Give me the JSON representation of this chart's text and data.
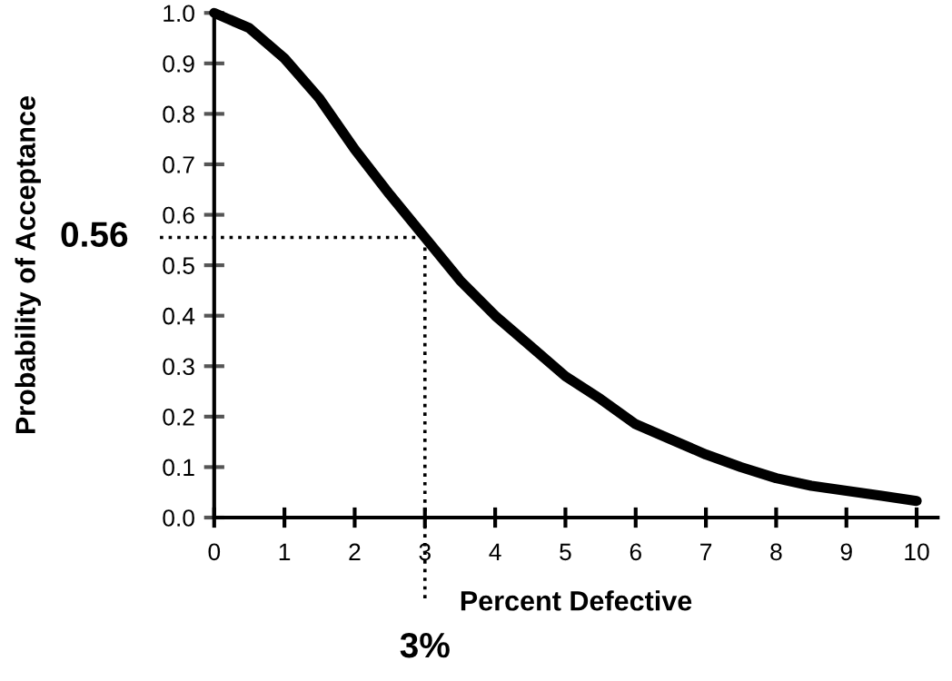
{
  "chart_data": {
    "type": "line",
    "xlabel": "Percent Defective",
    "ylabel": "Probability of Acceptance",
    "x": [
      0,
      0.5,
      1,
      1.5,
      2,
      2.5,
      3,
      3.5,
      4,
      4.5,
      5,
      5.5,
      6,
      6.5,
      7,
      7.5,
      8,
      8.5,
      9,
      9.5,
      10
    ],
    "series": [
      {
        "color": "#000000",
        "values": [
          1.0,
          0.97,
          0.91,
          0.83,
          0.73,
          0.64,
          0.555,
          0.47,
          0.4,
          0.34,
          0.28,
          0.235,
          0.185,
          0.155,
          0.125,
          0.1,
          0.078,
          0.063,
          0.053,
          0.043,
          0.033
        ]
      }
    ],
    "xlim": [
      0,
      10.3
    ],
    "ylim": [
      0,
      1.0
    ],
    "xticks": [
      0,
      1,
      2,
      3,
      4,
      5,
      6,
      7,
      8,
      9,
      10
    ],
    "yticks": [
      {
        "value": 0,
        "label": "0.0"
      },
      0.1,
      0.2,
      0.3,
      0.4,
      0.5,
      0.6,
      0.7,
      0.8,
      0.9,
      {
        "value": 1,
        "label": "1.0"
      }
    ],
    "ref_lines": [
      {
        "axis": "y",
        "value": 0.555,
        "label": "0.56",
        "line_style": "dotted",
        "color": "#000000"
      },
      {
        "axis": "x",
        "value": 3,
        "label": "3%",
        "line_style": "dotted",
        "color": "#000000"
      }
    ],
    "grid": false,
    "marker": "none",
    "line_style": "solid"
  }
}
